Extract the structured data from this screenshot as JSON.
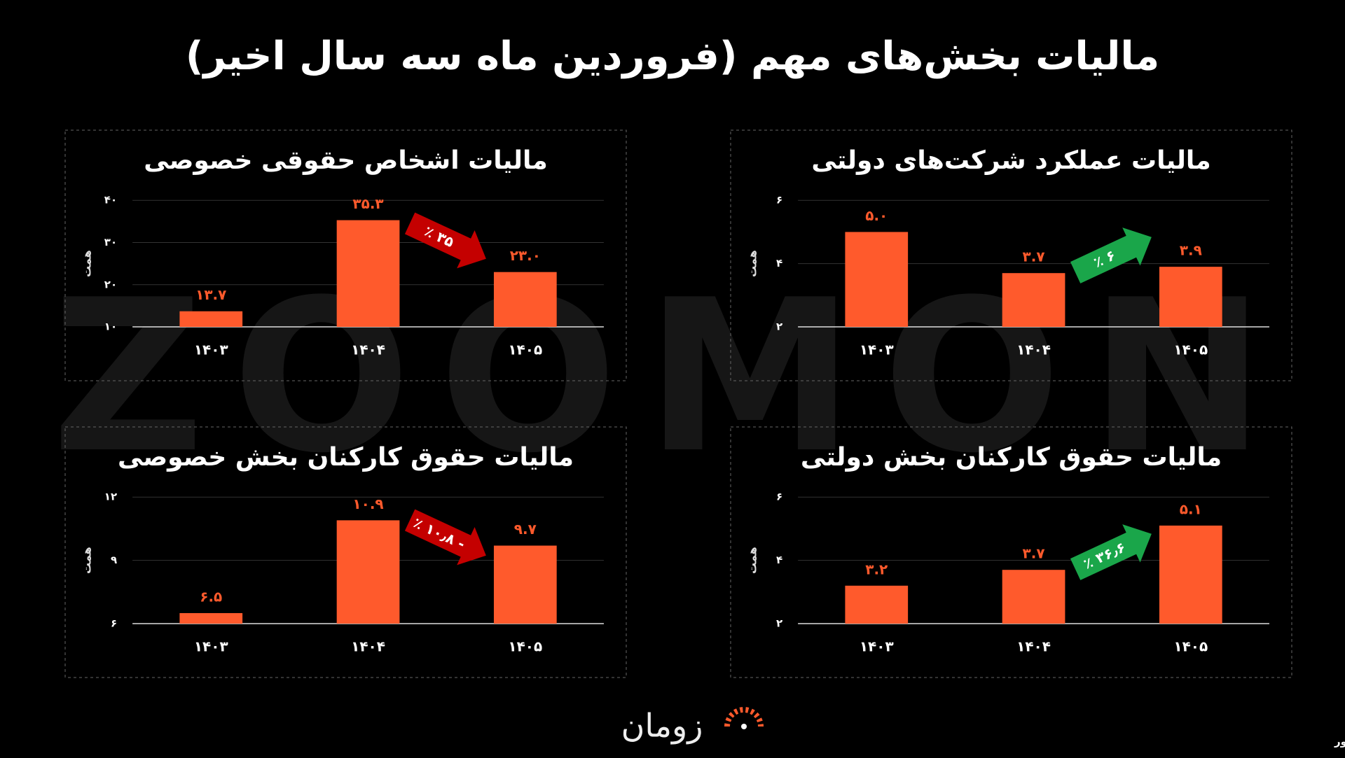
{
  "title": "مالیات بخش‌های مهم (فروردین ماه سه سال اخیر)",
  "watermark": "ZOOMON",
  "logo": "زومان",
  "source": "منبع داده: سازمان امور مالیاتی کشور",
  "chart_data": [
    {
      "type": "bar",
      "title": "مالیات اشخاص حقوقی خصوصی",
      "y_label": "همت",
      "categories": [
        "۱۴۰۳",
        "۱۴۰۴",
        "۱۴۰۵"
      ],
      "values": [
        13.7,
        35.3,
        23.0
      ],
      "value_labels": [
        "۱۳.۷",
        "۳۵.۳",
        "۲۳.۰"
      ],
      "color": "#ff5a2c",
      "ylim": [
        10,
        40
      ],
      "yticks": [
        {
          "value": 10,
          "label": "۱۰"
        },
        {
          "value": 20,
          "label": "۲۰"
        },
        {
          "value": 30,
          "label": "۳۰"
        },
        {
          "value": 40,
          "label": "۴۰"
        }
      ],
      "grid": true,
      "annotation": "۳۵ ٪",
      "annotation_color": "#c40000"
    },
    {
      "type": "bar",
      "title": "مالیات عملکرد شرکت‌های دولتی",
      "y_label": "همت",
      "categories": [
        "۱۴۰۳",
        "۱۴۰۴",
        "۱۴۰۵"
      ],
      "values": [
        5.0,
        3.7,
        3.9
      ],
      "value_labels": [
        "۵.۰",
        "۳.۷",
        "۳.۹"
      ],
      "color": "#ff5a2c",
      "ylim": [
        2,
        6
      ],
      "yticks": [
        {
          "value": 2,
          "label": "۲"
        },
        {
          "value": 4,
          "label": "۴"
        },
        {
          "value": 6,
          "label": "۶"
        }
      ],
      "grid": true,
      "annotation": "۶ ٪",
      "annotation_color": "#1aa64a"
    },
    {
      "type": "bar",
      "title": "مالیات حقوق کارکنان بخش خصوصی",
      "y_label": "همت",
      "categories": [
        "۱۴۰۳",
        "۱۴۰۴",
        "۱۴۰۵"
      ],
      "values": [
        6.5,
        10.9,
        9.7
      ],
      "value_labels": [
        "۶.۵",
        "۱۰.۹",
        "۹.۷"
      ],
      "color": "#ff5a2c",
      "ylim": [
        6,
        12
      ],
      "yticks": [
        {
          "value": 6,
          "label": "۶"
        },
        {
          "value": 9,
          "label": "۹"
        },
        {
          "value": 12,
          "label": "۱۲"
        }
      ],
      "grid": true,
      "annotation": "- ۱۰٫۸ ٪",
      "annotation_color": "#c40000"
    },
    {
      "type": "bar",
      "title": "مالیات حقوق کارکنان بخش دولتی",
      "y_label": "همت",
      "categories": [
        "۱۴۰۳",
        "۱۴۰۴",
        "۱۴۰۵"
      ],
      "values": [
        3.2,
        3.7,
        5.1
      ],
      "value_labels": [
        "۳.۲",
        "۳.۷",
        "۵.۱"
      ],
      "color": "#ff5a2c",
      "ylim": [
        2,
        6
      ],
      "yticks": [
        {
          "value": 2,
          "label": "۲"
        },
        {
          "value": 4,
          "label": "۴"
        },
        {
          "value": 6,
          "label": "۶"
        }
      ],
      "grid": true,
      "annotation": "۳۶٫۶ ٪",
      "annotation_color": "#1aa64a"
    }
  ]
}
